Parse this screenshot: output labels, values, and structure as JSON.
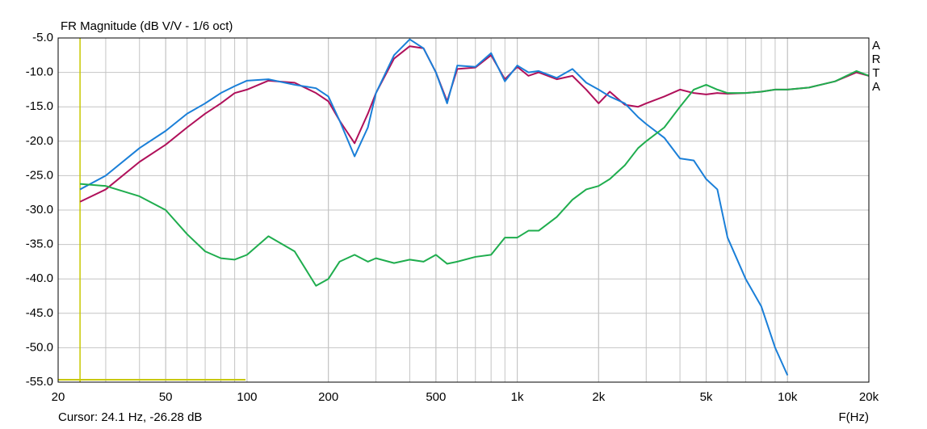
{
  "chart_data": {
    "type": "line",
    "title": "FR Magnitude (dB V/V - 1/6 oct)",
    "x_label": "F(Hz)",
    "watermark": "ARTA",
    "cursor": {
      "text": "Cursor: 24.1 Hz, -26.28 dB",
      "x": 24.1,
      "color": "#c8c800"
    },
    "log_x": true,
    "grid": true,
    "xlim": [
      20,
      20000
    ],
    "ylim": [
      -55,
      -5
    ],
    "xticks": [
      20,
      50,
      100,
      200,
      500,
      {
        "value": 1000,
        "label": "1k"
      },
      {
        "value": 2000,
        "label": "2k"
      },
      {
        "value": 5000,
        "label": "5k"
      },
      {
        "value": 10000,
        "label": "10k"
      },
      {
        "value": 20000,
        "label": "20k"
      }
    ],
    "yticks": [
      {
        "value": -5,
        "label": "-5.0"
      },
      {
        "value": -10,
        "label": "-10.0"
      },
      {
        "value": -15,
        "label": "-15.0"
      },
      {
        "value": -20,
        "label": "-20.0"
      },
      {
        "value": -25,
        "label": "-25.0"
      },
      {
        "value": -30,
        "label": "-30.0"
      },
      {
        "value": -35,
        "label": "-35.0"
      },
      {
        "value": -40,
        "label": "-40.0"
      },
      {
        "value": -45,
        "label": "-45.0"
      },
      {
        "value": -50,
        "label": "-50.0"
      },
      {
        "value": -55,
        "label": "-55.0"
      }
    ],
    "x": [
      24.1,
      30,
      40,
      50,
      60,
      70,
      80,
      90,
      100,
      120,
      150,
      180,
      200,
      220,
      250,
      280,
      300,
      350,
      400,
      450,
      500,
      550,
      600,
      700,
      800,
      900,
      1000,
      1100,
      1200,
      1400,
      1600,
      1800,
      2000,
      2200,
      2500,
      2800,
      3000,
      3500,
      4000,
      4500,
      5000,
      5500,
      6000,
      7000,
      8000,
      9000,
      10000,
      12000,
      15000,
      18000,
      20000
    ],
    "series": [
      {
        "color": "#b0105a",
        "values": [
          -28.8,
          -27,
          -23,
          -20.5,
          -18,
          -16,
          -14.5,
          -13,
          -12.5,
          -11.2,
          -11.5,
          -13,
          -14.2,
          -17,
          -20.3,
          -16,
          -13,
          -8,
          -6.2,
          -6.5,
          -10,
          -14.2,
          -9.5,
          -9.3,
          -7.5,
          -11,
          -9.2,
          -10.5,
          -10,
          -11,
          -10.5,
          -12.5,
          -14.5,
          -12.8,
          -14.7,
          -15,
          -14.5,
          -13.5,
          -12.5,
          -13,
          -13.2,
          -13,
          -13.1,
          -13,
          -12.8,
          -12.5,
          -12.5,
          -12.2,
          -11.3,
          -10,
          -10.5
        ]
      },
      {
        "color": "#1a7fd8",
        "values": [
          -27,
          -25,
          -21,
          -18.5,
          -16,
          -14.5,
          -13,
          -12,
          -11.2,
          -11,
          -11.8,
          -12.3,
          -13.5,
          -17,
          -22.2,
          -18,
          -13,
          -7.5,
          -5.2,
          -6.5,
          -10,
          -14.5,
          -9,
          -9.2,
          -7.2,
          -11.3,
          -9,
          -10,
          -9.8,
          -10.8,
          -9.5,
          -11.5,
          -12.5,
          -13.5,
          -14.5,
          -16.5,
          -17.5,
          -19.5,
          -22.5,
          -22.8,
          -25.5,
          -27,
          -34,
          -40,
          -44,
          -50,
          -54,
          null,
          null,
          null,
          null
        ]
      },
      {
        "color": "#1fad4e",
        "values": [
          -26.2,
          -26.5,
          -28,
          -30,
          -33.5,
          -36,
          -37,
          -37.2,
          -36.5,
          -33.8,
          -36,
          -41,
          -40,
          -37.5,
          -36.5,
          -37.5,
          -37,
          -37.7,
          -37.2,
          -37.5,
          -36.5,
          -37.8,
          -37.5,
          -36.8,
          -36.5,
          -34,
          -34,
          -33,
          -33,
          -31,
          -28.5,
          -27,
          -26.5,
          -25.5,
          -23.5,
          -21,
          -20,
          -18,
          -15,
          -12.5,
          -11.8,
          -12.5,
          -13,
          -13,
          -12.8,
          -12.5,
          -12.5,
          -12.2,
          -11.3,
          -9.8,
          -10.5
        ]
      }
    ]
  }
}
